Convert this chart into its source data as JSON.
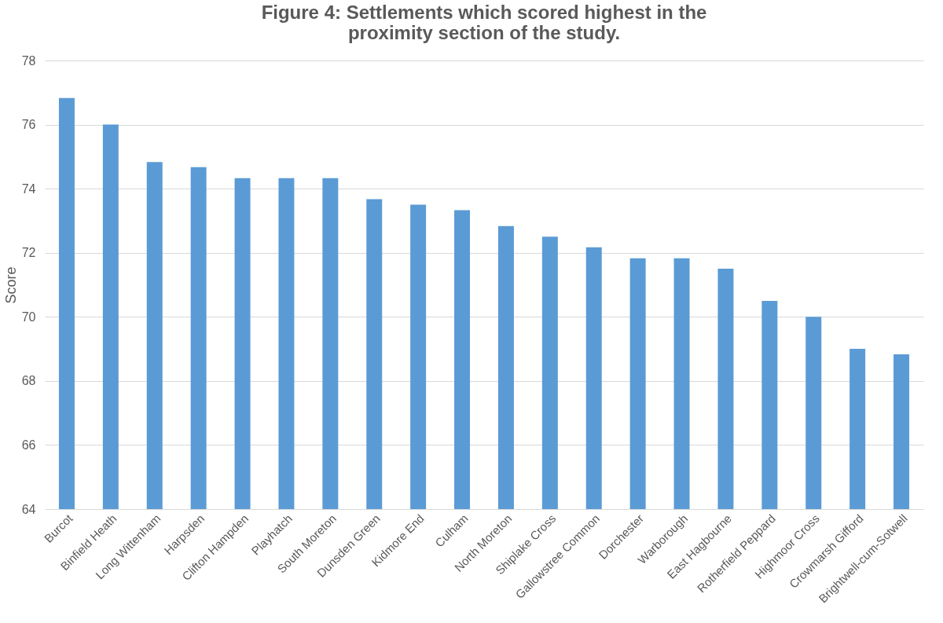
{
  "chart_data": {
    "type": "bar",
    "title": "Figure 4: Settlements which scored highest in the proximity section of the study.",
    "ylabel": "Score",
    "categories": [
      "Burcot",
      "Binfield Heath",
      "Long Wittenham",
      "Harpsden",
      "Clifton Hampden",
      "Playhatch",
      "South Moreton",
      "Dunsden Green",
      "Kidmore End",
      "Culham",
      "North Moreton",
      "Shiplake Cross",
      "Gallowstree Common",
      "Dorchester",
      "Warborough",
      "East Hagbourne",
      "Rotherfield Peppard",
      "Highmoor Cross",
      "Crowmarsh Gifford",
      "Brightwell-cum-Sotwell"
    ],
    "values": [
      76.83,
      76,
      74.83,
      74.67,
      74.33,
      74.33,
      74.33,
      73.67,
      73.5,
      73.33,
      72.83,
      72.5,
      72.17,
      71.83,
      71.83,
      71.5,
      70.5,
      70,
      69,
      68.83
    ],
    "color": "#5b9bd5",
    "ylim": [
      64,
      78
    ],
    "yticks": [
      64,
      66,
      68,
      70,
      72,
      74,
      76,
      78
    ],
    "grid": "y"
  }
}
